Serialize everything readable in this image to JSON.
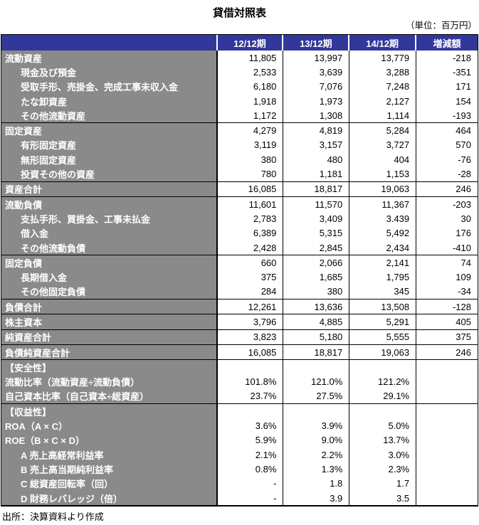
{
  "title": "貸借対照表",
  "unit_note": "（単位：百万円）",
  "source_note": "出所：決算資料より作成",
  "colors": {
    "header_bg": "#32379B",
    "header_text": "#FFFFFF",
    "label_bg": "#8A8A8A",
    "label_text": "#FFFFFF",
    "border": "#000000",
    "value_text": "#000000"
  },
  "table": {
    "columns": [
      "12/12期",
      "13/12期",
      "14/12期",
      "増減額"
    ],
    "rows": [
      {
        "label": "流動資産",
        "indent": false,
        "sep": false,
        "values": [
          "11,805",
          "13,997",
          "13,779",
          "-218"
        ]
      },
      {
        "label": "現金及び預金",
        "indent": true,
        "sep": false,
        "values": [
          "2,533",
          "3,639",
          "3,288",
          "-351"
        ]
      },
      {
        "label": "受取手形、売掛金、完成工事未収入金",
        "indent": true,
        "sep": false,
        "values": [
          "6,180",
          "7,076",
          "7,248",
          "171"
        ]
      },
      {
        "label": "たな卸資産",
        "indent": true,
        "sep": false,
        "values": [
          "1,918",
          "1,973",
          "2,127",
          "154"
        ]
      },
      {
        "label": "その他流動資産",
        "indent": true,
        "sep": false,
        "values": [
          "1,172",
          "1,308",
          "1,114",
          "-193"
        ]
      },
      {
        "label": "固定資産",
        "indent": false,
        "sep": true,
        "values": [
          "4,279",
          "4,819",
          "5,284",
          "464"
        ]
      },
      {
        "label": "有形固定資産",
        "indent": true,
        "sep": false,
        "values": [
          "3,119",
          "3,157",
          "3,727",
          "570"
        ]
      },
      {
        "label": "無形固定資産",
        "indent": true,
        "sep": false,
        "values": [
          "380",
          "480",
          "404",
          "-76"
        ]
      },
      {
        "label": "投資その他の資産",
        "indent": true,
        "sep": false,
        "values": [
          "780",
          "1,181",
          "1,153",
          "-28"
        ]
      },
      {
        "label": "資産合計",
        "indent": false,
        "sep": true,
        "values": [
          "16,085",
          "18,817",
          "19,063",
          "246"
        ]
      },
      {
        "label": "流動負債",
        "indent": false,
        "sep": true,
        "values": [
          "11,601",
          "11,570",
          "11,367",
          "-203"
        ]
      },
      {
        "label": "支払手形、買掛金、工事未払金",
        "indent": true,
        "sep": false,
        "values": [
          "2,783",
          "3,409",
          "3.439",
          "30"
        ]
      },
      {
        "label": "借入金",
        "indent": true,
        "sep": false,
        "values": [
          "6,389",
          "5,315",
          "5,492",
          "176"
        ]
      },
      {
        "label": "その他流動負債",
        "indent": true,
        "sep": false,
        "values": [
          "2,428",
          "2,845",
          "2,434",
          "-410"
        ]
      },
      {
        "label": "固定負債",
        "indent": false,
        "sep": true,
        "values": [
          "660",
          "2,066",
          "2,141",
          "74"
        ]
      },
      {
        "label": "長期借入金",
        "indent": true,
        "sep": false,
        "values": [
          "375",
          "1,685",
          "1,795",
          "109"
        ]
      },
      {
        "label": "その他固定負債",
        "indent": true,
        "sep": false,
        "values": [
          "284",
          "380",
          "345",
          "-34"
        ]
      },
      {
        "label": "負債合計",
        "indent": false,
        "sep": true,
        "values": [
          "12,261",
          "13,636",
          "13,508",
          "-128"
        ]
      },
      {
        "label": "株主資本",
        "indent": false,
        "sep": true,
        "values": [
          "3,796",
          "4,885",
          "5,291",
          "405"
        ]
      },
      {
        "label": "純資産合計",
        "indent": false,
        "sep": true,
        "values": [
          "3,823",
          "5,180",
          "5,555",
          "375"
        ]
      },
      {
        "label": "負債純資産合計",
        "indent": false,
        "sep": true,
        "values": [
          "16,085",
          "18,817",
          "19,063",
          "246"
        ]
      },
      {
        "label": "【安全性】",
        "indent": false,
        "sep": true,
        "values": [
          "",
          "",
          "",
          ""
        ]
      },
      {
        "label": "流動比率（流動資産÷流動負債）",
        "indent": false,
        "sep": false,
        "values": [
          "101.8%",
          "121.0%",
          "121.2%",
          ""
        ]
      },
      {
        "label": "自己資本比率（自己資本÷総資産）",
        "indent": false,
        "sep": false,
        "values": [
          "23.7%",
          "27.5%",
          "29.1%",
          ""
        ]
      },
      {
        "label": "【収益性】",
        "indent": false,
        "sep": true,
        "values": [
          "",
          "",
          "",
          ""
        ]
      },
      {
        "label": "ROA（A × C）",
        "indent": false,
        "sep": false,
        "values": [
          "3.6%",
          "3.9%",
          "5.0%",
          ""
        ]
      },
      {
        "label": "ROE（B × C × D）",
        "indent": false,
        "sep": false,
        "values": [
          "5.9%",
          "9.0%",
          "13.7%",
          ""
        ]
      },
      {
        "label": "A 売上高経常利益率",
        "indent": true,
        "sep": false,
        "values": [
          "2.1%",
          "2.2%",
          "3.0%",
          ""
        ]
      },
      {
        "label": "B 売上高当期純利益率",
        "indent": true,
        "sep": false,
        "values": [
          "0.8%",
          "1.3%",
          "2.3%",
          ""
        ]
      },
      {
        "label": "C 総資産回転率（回）",
        "indent": true,
        "sep": false,
        "values": [
          "-",
          "1.8",
          "1.7",
          ""
        ]
      },
      {
        "label": "D 財務レバレッジ（倍）",
        "indent": true,
        "sep": false,
        "values": [
          "-",
          "3.9",
          "3.5",
          ""
        ]
      }
    ]
  }
}
